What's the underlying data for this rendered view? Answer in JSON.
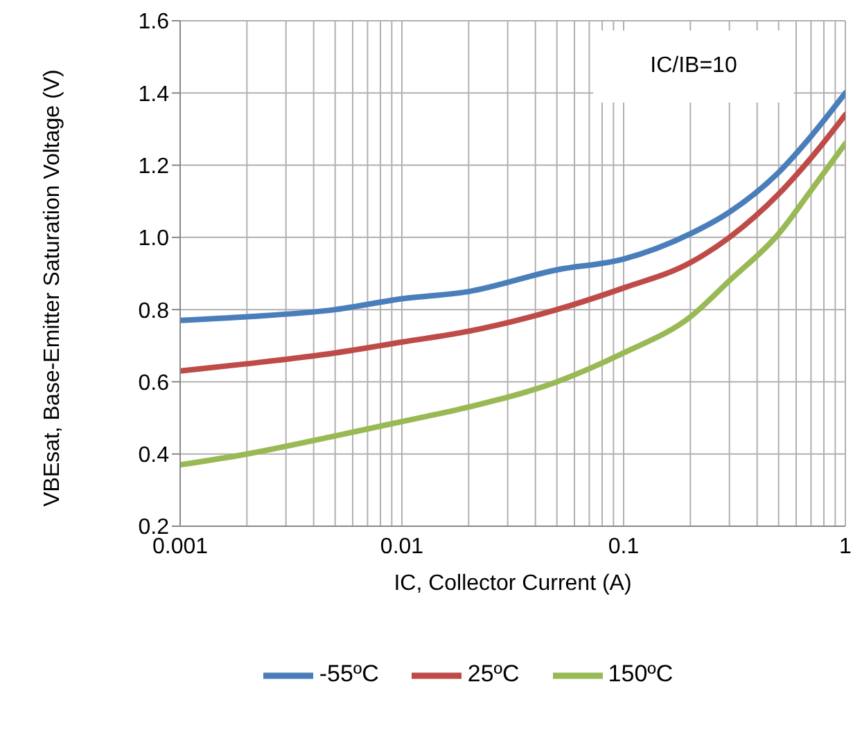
{
  "chart_data": {
    "type": "line",
    "xlabel": "IC, Collector Current (A)",
    "ylabel": "VBEsat, Base-Emitter Saturation Voltage (V)",
    "annotations": [
      "IC/IB=10"
    ],
    "x": [
      0.001,
      0.002,
      0.005,
      0.01,
      0.02,
      0.05,
      0.1,
      0.2,
      0.3,
      0.5,
      0.7,
      1
    ],
    "series": [
      {
        "name": "-55ºC",
        "color": "#4a7ebb",
        "values": [
          0.77,
          0.78,
          0.8,
          0.83,
          0.85,
          0.91,
          0.94,
          1.01,
          1.07,
          1.18,
          1.28,
          1.4
        ]
      },
      {
        "name": "25ºC",
        "color": "#be4b48",
        "values": [
          0.63,
          0.65,
          0.68,
          0.71,
          0.74,
          0.8,
          0.86,
          0.93,
          1.0,
          1.12,
          1.22,
          1.34
        ]
      },
      {
        "name": "150ºC",
        "color": "#98b954",
        "values": [
          0.37,
          0.4,
          0.45,
          0.49,
          0.53,
          0.6,
          0.68,
          0.78,
          0.88,
          1.01,
          1.13,
          1.26
        ]
      }
    ],
    "log": "x",
    "xlim": [
      0.001,
      1
    ],
    "xticks": [
      0.001,
      {
        "value": 0.002,
        "label": null
      },
      {
        "value": 0.003,
        "label": null
      },
      {
        "value": 0.004,
        "label": null
      },
      {
        "value": 0.005,
        "label": null
      },
      {
        "value": 0.006,
        "label": null
      },
      {
        "value": 0.007,
        "label": null
      },
      {
        "value": 0.008,
        "label": null
      },
      {
        "value": 0.009,
        "label": null
      },
      0.01,
      {
        "value": 0.02,
        "label": null
      },
      {
        "value": 0.03,
        "label": null
      },
      {
        "value": 0.04,
        "label": null
      },
      {
        "value": 0.05,
        "label": null
      },
      {
        "value": 0.06,
        "label": null
      },
      {
        "value": 0.07,
        "label": null
      },
      {
        "value": 0.08,
        "label": null
      },
      {
        "value": 0.09,
        "label": null
      },
      0.1,
      {
        "value": 0.2,
        "label": null
      },
      {
        "value": 0.3,
        "label": null
      },
      {
        "value": 0.4,
        "label": null
      },
      {
        "value": 0.5,
        "label": null
      },
      {
        "value": 0.6,
        "label": null
      },
      {
        "value": 0.7,
        "label": null
      },
      {
        "value": 0.8,
        "label": null
      },
      {
        "value": 0.9,
        "label": null
      },
      1
    ],
    "ylim": [
      0.2,
      1.6
    ],
    "yticks": [
      {
        "value": 0.2,
        "label": "0.2"
      },
      {
        "value": 0.4,
        "label": "0.4"
      },
      {
        "value": 0.6,
        "label": "0.6"
      },
      {
        "value": 0.8,
        "label": "0.8"
      },
      {
        "value": 1.0,
        "label": "1.0"
      },
      {
        "value": 1.2,
        "label": "1.2"
      },
      {
        "value": 1.4,
        "label": "1.4"
      },
      {
        "value": 1.6,
        "label": "1.6"
      }
    ],
    "grid": true,
    "legend": "bottom",
    "marker": "none",
    "line_style": "solid"
  }
}
